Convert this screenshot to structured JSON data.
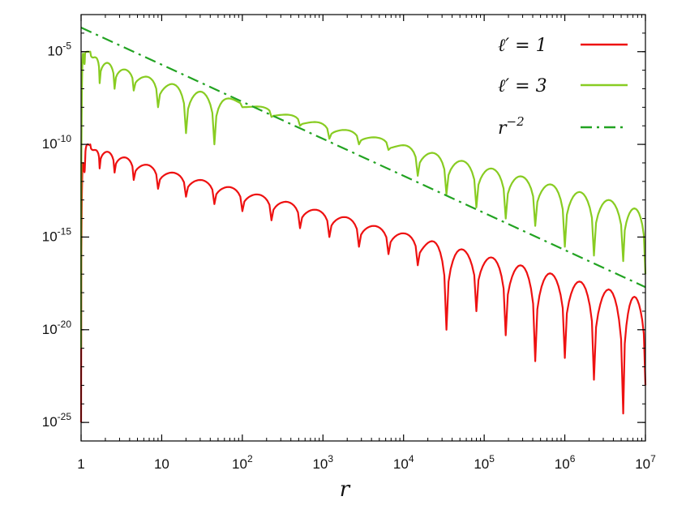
{
  "chart_data": {
    "type": "line",
    "title": "",
    "xlabel": "r",
    "ylabel": "",
    "xscale": "log",
    "yscale": "log",
    "xlim": [
      1,
      10000000
    ],
    "ylim": [
      1e-26,
      0.001
    ],
    "x_ticks": [
      {
        "base": "1",
        "exp": ""
      },
      {
        "base": "10",
        "exp": ""
      },
      {
        "base": "10",
        "exp": "2"
      },
      {
        "base": "10",
        "exp": "3"
      },
      {
        "base": "10",
        "exp": "4"
      },
      {
        "base": "10",
        "exp": "5"
      },
      {
        "base": "10",
        "exp": "6"
      },
      {
        "base": "10",
        "exp": "7"
      }
    ],
    "y_ticks": [
      {
        "base": "10",
        "exp": "-5"
      },
      {
        "base": "10",
        "exp": "-10"
      },
      {
        "base": "10",
        "exp": "-15"
      },
      {
        "base": "10",
        "exp": "-20"
      },
      {
        "base": "10",
        "exp": "-25"
      }
    ],
    "grid": false,
    "legend_position": "top-right",
    "series": [
      {
        "name": "ℓ′ = 1",
        "color": "#ee1111",
        "style": "solid",
        "x": [
          1.0,
          1.12,
          1.3,
          1.7,
          2.6,
          4.5,
          9,
          20,
          45,
          100,
          230,
          520,
          1200,
          2800,
          6500,
          15000,
          34000,
          80000,
          185000,
          430000,
          1000000,
          2300000,
          5300000,
          10000000
        ],
        "peaks": [
          1e-25,
          1e-11,
          1e-10,
          5e-11,
          4e-11,
          2e-11,
          8e-12,
          3e-12,
          1.2e-12,
          5e-13,
          2e-13,
          8e-14,
          3e-14,
          1.2e-14,
          4e-15,
          1.6e-15,
          6e-16,
          2.2e-16,
          8e-17,
          3e-17,
          1.1e-17,
          4e-18,
          1.5e-18,
          6e-19
        ],
        "dips": [
          1e-25,
          1e-11,
          1e-10,
          5e-12,
          3e-12,
          1.2e-12,
          4e-13,
          1.5e-13,
          6e-14,
          2.5e-14,
          8e-15,
          3e-15,
          1e-15,
          3e-16,
          1.2e-16,
          3e-17,
          1e-20,
          1e-19,
          5e-21,
          2e-22,
          3e-22,
          2e-23,
          3e-25,
          1e-23
        ]
      },
      {
        "name": "ℓ′ = 3",
        "color": "#88cc22",
        "style": "solid",
        "x": [
          1.0,
          1.12,
          1.3,
          1.7,
          2.6,
          4.5,
          9,
          20,
          45,
          100,
          230,
          520,
          1200,
          2800,
          6500,
          15000,
          34000,
          80000,
          185000,
          430000,
          1000000,
          2300000,
          5300000,
          10000000
        ],
        "peaks": [
          1e-21,
          8e-06,
          1e-05,
          5e-06,
          2.5e-06,
          1.1e-06,
          4.5e-07,
          1.8e-07,
          7e-08,
          3e-08,
          1.1e-08,
          4e-09,
          1.6e-09,
          6e-10,
          2.4e-10,
          9e-11,
          3.5e-11,
          1.3e-11,
          5e-12,
          1.9e-12,
          7e-13,
          2.7e-13,
          1e-13,
          3.5e-14
        ],
        "dips": [
          1e-21,
          8e-06,
          1e-05,
          2e-07,
          1e-07,
          8e-08,
          1e-08,
          4e-10,
          1e-10,
          1e-08,
          3e-09,
          1e-09,
          2e-10,
          1e-10,
          5e-11,
          2e-12,
          2e-13,
          4e-14,
          1e-14,
          4e-15,
          3e-16,
          1e-16,
          5e-17,
          1e-17
        ]
      },
      {
        "name": "r⁻²",
        "color": "#22a322",
        "style": "dash-dot",
        "x": [
          1,
          10000000
        ],
        "y": [
          0.0002,
          2e-18
        ]
      }
    ],
    "legend": [
      {
        "label": "ℓ′ = 1",
        "color": "#ee1111"
      },
      {
        "label": "ℓ′ = 3",
        "color": "#88cc22"
      },
      {
        "label_base": "r",
        "label_exp": "−2",
        "color": "#22a322"
      }
    ]
  }
}
